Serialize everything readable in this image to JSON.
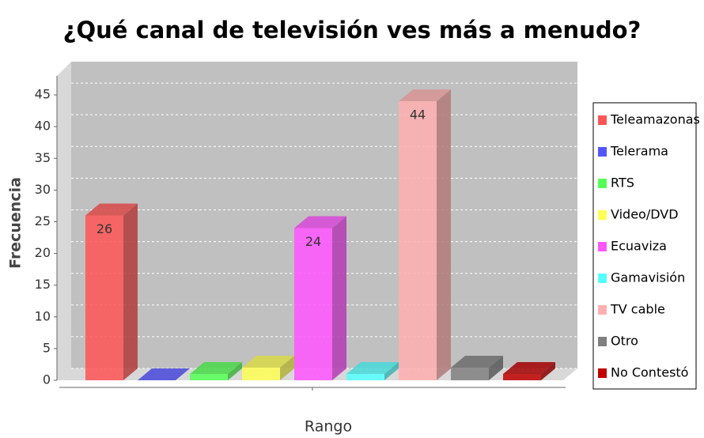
{
  "chart_data": {
    "type": "bar",
    "title": "¿Qué canal de televisión ves más a menudo?",
    "x_label": "Rango",
    "y_label": "Frecuencia",
    "categories": [
      null
    ],
    "series": [
      {
        "name": "Teleamazonas",
        "color": "#ff5555",
        "values": [
          26
        ],
        "value_labels": [
          "26"
        ]
      },
      {
        "name": "Telerama",
        "color": "#5555ff",
        "values": [
          0
        ],
        "value_labels": [
          null
        ]
      },
      {
        "name": "RTS",
        "color": "#55ff55",
        "values": [
          1
        ],
        "value_labels": [
          null
        ]
      },
      {
        "name": "Video/DVD",
        "color": "#ffff55",
        "values": [
          2
        ],
        "value_labels": [
          null
        ]
      },
      {
        "name": "Ecuaviza",
        "color": "#ff55ff",
        "values": [
          24
        ],
        "value_labels": [
          "24"
        ]
      },
      {
        "name": "Gamavisión",
        "color": "#55ffff",
        "values": [
          1
        ],
        "value_labels": [
          null
        ]
      },
      {
        "name": "TV cable",
        "color": "#ffafaf",
        "values": [
          44
        ],
        "value_labels": [
          "44"
        ]
      },
      {
        "name": "Otro",
        "color": "#808080",
        "values": [
          2
        ],
        "value_labels": [
          null
        ]
      },
      {
        "name": "No Contestó",
        "color": "#c00000",
        "values": [
          1
        ],
        "value_labels": [
          null
        ]
      }
    ],
    "ylim": [
      0,
      48
    ],
    "yticks": [
      0,
      5,
      10,
      15,
      20,
      25,
      30,
      35,
      40,
      45
    ],
    "grid": true,
    "legend": "right"
  }
}
